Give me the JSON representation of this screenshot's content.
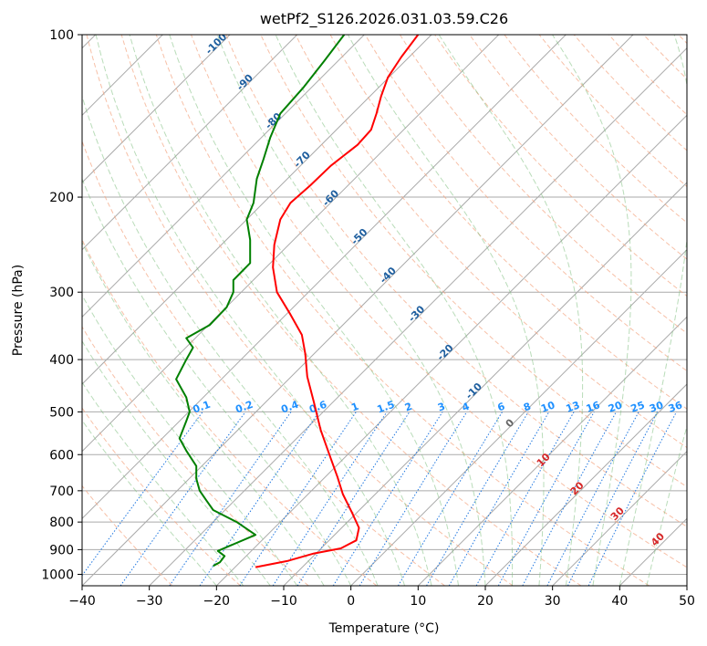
{
  "chart_data": {
    "type": "line",
    "title": "wetPf2_S126.2026.031.03.59.C26",
    "xlabel": "Temperature (°C)",
    "ylabel": "Pressure (hPa)",
    "xlim": [
      -40,
      50
    ],
    "ylim": [
      1050,
      100
    ],
    "y_scale": "log",
    "x_ticks": [
      -40,
      -30,
      -20,
      -10,
      0,
      10,
      20,
      30,
      40,
      50
    ],
    "y_ticks": [
      100,
      200,
      300,
      400,
      500,
      600,
      700,
      800,
      900,
      1000
    ],
    "grid": true,
    "series": [
      {
        "name": "",
        "color": "#ff0000",
        "points": [
          [
            -14.2,
            970
          ],
          [
            -9.5,
            945
          ],
          [
            -5.5,
            915
          ],
          [
            -1.5,
            895
          ],
          [
            0.8,
            865
          ],
          [
            1.2,
            820
          ],
          [
            0.2,
            770
          ],
          [
            -1.2,
            710
          ],
          [
            -2.0,
            660
          ],
          [
            -3.2,
            600
          ],
          [
            -4.5,
            540
          ],
          [
            -5.5,
            480
          ],
          [
            -6.5,
            430
          ],
          [
            -6.8,
            390
          ],
          [
            -7.3,
            360
          ],
          [
            -9.0,
            330
          ],
          [
            -11.0,
            300
          ],
          [
            -11.6,
            270
          ],
          [
            -11.4,
            245
          ],
          [
            -10.5,
            220
          ],
          [
            -9.0,
            205
          ],
          [
            -6.0,
            190
          ],
          [
            -3.0,
            175
          ],
          [
            1.0,
            160
          ],
          [
            3.0,
            150
          ],
          [
            3.8,
            140
          ],
          [
            4.5,
            130
          ],
          [
            5.5,
            120
          ],
          [
            7.5,
            110
          ],
          [
            10.0,
            100
          ]
        ]
      },
      {
        "name": "",
        "color": "#008000",
        "points": [
          [
            -20.5,
            965
          ],
          [
            -19.5,
            950
          ],
          [
            -18.8,
            925
          ],
          [
            -19.8,
            905
          ],
          [
            -18.0,
            885
          ],
          [
            -14.2,
            845
          ],
          [
            -17.0,
            800
          ],
          [
            -20.5,
            760
          ],
          [
            -21.5,
            730
          ],
          [
            -22.5,
            700
          ],
          [
            -23.0,
            665
          ],
          [
            -23.0,
            630
          ],
          [
            -24.5,
            590
          ],
          [
            -25.5,
            560
          ],
          [
            -24.5,
            520
          ],
          [
            -24.0,
            500
          ],
          [
            -24.5,
            470
          ],
          [
            -26.0,
            435
          ],
          [
            -24.5,
            400
          ],
          [
            -23.5,
            380
          ],
          [
            -24.5,
            365
          ],
          [
            -21.0,
            345
          ],
          [
            -18.5,
            320
          ],
          [
            -17.5,
            300
          ],
          [
            -17.5,
            285
          ],
          [
            -15.0,
            265
          ],
          [
            -15.0,
            240
          ],
          [
            -15.5,
            220
          ],
          [
            -14.5,
            205
          ],
          [
            -14.0,
            185
          ],
          [
            -13.0,
            170
          ],
          [
            -12.0,
            155
          ],
          [
            -10.5,
            140
          ],
          [
            -7.0,
            125
          ],
          [
            -4.0,
            112
          ],
          [
            -1.0,
            100
          ]
        ]
      }
    ],
    "dry_adiabat_labels": [
      "-100",
      "-90",
      "-80",
      "-70",
      "-60",
      "-50",
      "-40",
      "-30",
      "-20",
      "-10"
    ],
    "mixing_ratio_labels": [
      "0.1",
      "0.2",
      "0.4",
      "0.6",
      "1",
      "1.5",
      "2",
      "3",
      "4",
      "6",
      "8",
      "10",
      "13",
      "16",
      "20",
      "25",
      "30",
      "36"
    ],
    "moist_adiabat_labels": [
      "0",
      "10",
      "20",
      "30",
      "40"
    ],
    "colors": {
      "isotherm": "#aaaaaa",
      "dry_adiabat": "#f4a582",
      "moist_adiabat": "#7fbf7f",
      "mixing_ratio": "#1f77e0",
      "dry_label": "#1f5f9f",
      "mixing_label": "#1e90ff",
      "moist_label": "#d62728"
    }
  }
}
